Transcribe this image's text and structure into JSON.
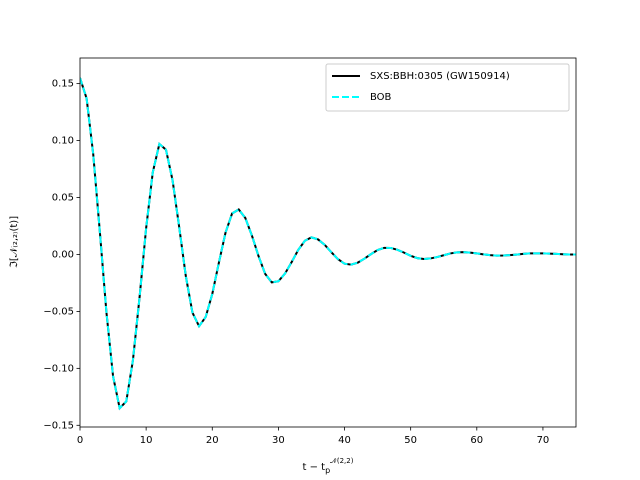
{
  "chart_data": {
    "type": "line",
    "ylabel": "ℑ[𝒩₍₂,₂₎(t)]",
    "xlabel": "t − t",
    "xlabel_sub": "p",
    "xlabel_sup": "𝒩(2,2)",
    "x": [
      0,
      1,
      2,
      3,
      4,
      5,
      6,
      7,
      8,
      9,
      10,
      11,
      12,
      13,
      14,
      15,
      16,
      17,
      18,
      19,
      20,
      21,
      22,
      23,
      24,
      25,
      26,
      27,
      28,
      29,
      30,
      31,
      32,
      33,
      34,
      35,
      36,
      37,
      38,
      39,
      40,
      41,
      42,
      43,
      44,
      45,
      46,
      47,
      48,
      49,
      50,
      51,
      52,
      53,
      54,
      55,
      56,
      57,
      58,
      59,
      60,
      61,
      62,
      63,
      64,
      65,
      66,
      67,
      68,
      69,
      70,
      71,
      72,
      73,
      74,
      75
    ],
    "series": [
      {
        "name": "SXS:BBH:0305 (GW150914)",
        "color": "#000000",
        "dash": false,
        "values": [
          0.155,
          0.137,
          0.088,
          0.02,
          -0.051,
          -0.107,
          -0.135,
          -0.129,
          -0.093,
          -0.038,
          0.023,
          0.072,
          0.097,
          0.092,
          0.065,
          0.024,
          -0.019,
          -0.051,
          -0.063,
          -0.055,
          -0.0347,
          -0.0072,
          0.019,
          0.036,
          0.0395,
          0.032,
          0.0165,
          -0.0015,
          -0.017,
          -0.0245,
          -0.0235,
          -0.0168,
          -0.0067,
          0.004,
          0.012,
          0.015,
          0.0132,
          0.0084,
          0.002,
          -0.0041,
          -0.0081,
          -0.0089,
          -0.0072,
          -0.0037,
          0.0003,
          0.0039,
          0.0058,
          0.0057,
          0.0041,
          0.0016,
          -0.0012,
          -0.0032,
          -0.004,
          -0.0035,
          -0.0023,
          -0.0007,
          0.0009,
          0.0018,
          0.002,
          0.0016,
          0.0009,
          0.0001,
          -0.0006,
          -0.001,
          -0.0009,
          -0.0006,
          -0.0001,
          0.0005,
          0.0009,
          0.001,
          0.00095,
          0.0007,
          0.0005,
          0.0002,
          0.0,
          0.0
        ]
      },
      {
        "name": "BOB",
        "color": "#00ffff",
        "dash": true,
        "values": [
          0.155,
          0.137,
          0.088,
          0.02,
          -0.051,
          -0.107,
          -0.135,
          -0.129,
          -0.093,
          -0.038,
          0.023,
          0.072,
          0.097,
          0.092,
          0.065,
          0.024,
          -0.019,
          -0.051,
          -0.063,
          -0.055,
          -0.0347,
          -0.0072,
          0.019,
          0.036,
          0.0395,
          0.032,
          0.0165,
          -0.0015,
          -0.017,
          -0.0245,
          -0.0235,
          -0.0168,
          -0.0067,
          0.004,
          0.012,
          0.015,
          0.0132,
          0.0084,
          0.002,
          -0.0041,
          -0.0081,
          -0.0089,
          -0.0072,
          -0.0037,
          0.0003,
          0.0039,
          0.0058,
          0.0057,
          0.0041,
          0.0016,
          -0.0012,
          -0.0032,
          -0.004,
          -0.0035,
          -0.0023,
          -0.0007,
          0.0009,
          0.0018,
          0.002,
          0.0016,
          0.0009,
          0.0001,
          -0.0006,
          -0.001,
          -0.0009,
          -0.0006,
          -0.0001,
          0.0005,
          0.0009,
          0.001,
          0.00095,
          0.0007,
          0.0005,
          0.0002,
          0.0,
          0.0
        ]
      }
    ],
    "xlim": [
      0,
      75
    ],
    "xticks": [
      0,
      10,
      20,
      30,
      40,
      50,
      60,
      70
    ],
    "ylim": [
      -0.1515,
      0.1725
    ],
    "yticks": [
      {
        "value": -0.15,
        "label": "−0.15"
      },
      {
        "value": -0.1,
        "label": "−0.10"
      },
      {
        "value": -0.05,
        "label": "−0.05"
      },
      {
        "value": 0,
        "label": "0.00"
      },
      {
        "value": 0.05,
        "label": "0.05"
      },
      {
        "value": 0.1,
        "label": "0.10"
      },
      {
        "value": 0.15,
        "label": "0.15"
      }
    ],
    "grid": false,
    "legend": "upper right"
  }
}
